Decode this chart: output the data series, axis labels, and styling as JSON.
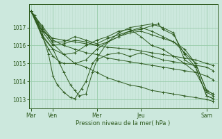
{
  "background_color": "#cce8dd",
  "line_color": "#2d5a1e",
  "grid_color_major": "#99ccaa",
  "grid_color_minor": "#bbddcc",
  "title": "Pression niveau de la mer( hPa )",
  "x_tick_positions": [
    0,
    1,
    3,
    5,
    8
  ],
  "x_tick_labels": [
    "Mar",
    "Ven",
    "Mer",
    "Jeu",
    "Sam"
  ],
  "ylim": [
    1012.5,
    1018.3
  ],
  "yticks": [
    1013,
    1014,
    1015,
    1016,
    1017
  ],
  "xlim": [
    -0.1,
    8.5
  ],
  "lines": [
    [
      0.0,
      1017.9,
      0.15,
      1017.7,
      0.5,
      1017.0,
      0.8,
      1016.5,
      1.0,
      1016.1,
      1.5,
      1015.5,
      2.0,
      1015.0,
      2.5,
      1014.8,
      3.0,
      1014.5,
      3.5,
      1014.2,
      4.0,
      1014.0,
      4.5,
      1013.8,
      5.0,
      1013.7,
      5.5,
      1013.5,
      6.0,
      1013.4,
      6.5,
      1013.3,
      7.0,
      1013.2,
      7.5,
      1013.1,
      8.0,
      1013.0,
      8.3,
      1012.9
    ],
    [
      0.0,
      1017.9,
      0.5,
      1017.1,
      1.0,
      1016.3,
      1.5,
      1016.0,
      2.0,
      1015.8,
      2.5,
      1015.6,
      3.0,
      1015.5,
      3.5,
      1015.3,
      4.0,
      1015.2,
      4.5,
      1015.1,
      5.0,
      1015.0,
      5.5,
      1014.9,
      6.0,
      1014.8,
      6.5,
      1014.7,
      7.0,
      1014.6,
      7.5,
      1014.5,
      8.0,
      1014.3,
      8.3,
      1014.1
    ],
    [
      0.0,
      1017.9,
      0.5,
      1016.8,
      1.0,
      1016.4,
      1.5,
      1016.3,
      2.0,
      1016.2,
      2.5,
      1016.1,
      3.0,
      1016.0,
      3.5,
      1015.9,
      4.0,
      1015.85,
      4.5,
      1015.8,
      5.0,
      1015.7,
      5.5,
      1015.6,
      6.0,
      1015.5,
      6.5,
      1015.4,
      7.0,
      1015.3,
      7.5,
      1015.2,
      8.0,
      1015.0,
      8.3,
      1014.9
    ],
    [
      0.0,
      1017.9,
      0.5,
      1016.5,
      1.0,
      1015.8,
      1.3,
      1015.0,
      1.5,
      1014.5,
      1.8,
      1013.8,
      2.0,
      1013.5,
      2.2,
      1013.2,
      2.5,
      1013.3,
      2.8,
      1014.5,
      3.0,
      1015.2,
      3.5,
      1015.5,
      4.0,
      1015.6,
      4.5,
      1015.4,
      5.0,
      1015.6,
      5.5,
      1015.4,
      6.0,
      1015.2,
      6.5,
      1015.1,
      7.0,
      1015.0,
      7.5,
      1014.9,
      8.0,
      1014.8,
      8.3,
      1014.6
    ],
    [
      0.0,
      1017.9,
      0.3,
      1017.3,
      0.5,
      1016.6,
      0.8,
      1015.5,
      1.0,
      1014.3,
      1.2,
      1013.8,
      1.5,
      1013.4,
      1.8,
      1013.1,
      2.0,
      1013.05,
      2.3,
      1013.6,
      2.5,
      1014.0,
      2.8,
      1015.0,
      3.0,
      1015.3,
      3.5,
      1016.2,
      4.0,
      1016.5,
      4.5,
      1016.8,
      5.0,
      1016.9,
      5.5,
      1017.1,
      5.8,
      1017.2,
      6.0,
      1016.9,
      6.5,
      1016.6,
      7.0,
      1015.5,
      7.5,
      1014.8,
      8.0,
      1013.2,
      8.3,
      1013.05
    ],
    [
      0.0,
      1017.9,
      0.3,
      1017.2,
      0.5,
      1016.5,
      0.8,
      1015.8,
      1.0,
      1015.4,
      1.3,
      1015.1,
      1.5,
      1015.0,
      2.0,
      1015.0,
      2.5,
      1015.2,
      3.0,
      1015.8,
      3.5,
      1016.2,
      4.0,
      1016.7,
      4.5,
      1017.0,
      5.0,
      1017.1,
      5.5,
      1017.2,
      6.0,
      1017.0,
      6.5,
      1016.7,
      7.0,
      1015.2,
      7.5,
      1014.8,
      8.0,
      1013.2,
      8.3,
      1013.05
    ],
    [
      0.0,
      1017.9,
      0.5,
      1016.6,
      1.0,
      1015.8,
      1.5,
      1015.5,
      2.0,
      1015.6,
      2.5,
      1016.0,
      3.0,
      1016.3,
      3.5,
      1016.5,
      4.0,
      1016.8,
      4.5,
      1016.9,
      5.0,
      1016.5,
      5.5,
      1016.0,
      6.0,
      1015.8,
      6.5,
      1015.4,
      7.0,
      1015.0,
      7.5,
      1014.5,
      8.0,
      1013.4,
      8.3,
      1013.2
    ],
    [
      0.0,
      1017.9,
      0.5,
      1016.8,
      1.0,
      1016.0,
      1.5,
      1016.1,
      2.0,
      1016.3,
      2.5,
      1016.2,
      3.0,
      1016.0,
      3.5,
      1016.2,
      4.0,
      1016.5,
      4.5,
      1016.7,
      5.0,
      1016.8,
      5.5,
      1016.6,
      6.0,
      1016.4,
      6.5,
      1016.2,
      7.0,
      1015.8,
      7.5,
      1015.0,
      8.0,
      1013.5,
      8.3,
      1013.3
    ],
    [
      0.0,
      1017.9,
      0.5,
      1016.9,
      1.0,
      1016.2,
      1.5,
      1016.2,
      2.0,
      1016.5,
      2.5,
      1016.3,
      3.0,
      1016.1,
      3.5,
      1016.4,
      4.0,
      1016.6,
      4.5,
      1016.8,
      5.0,
      1017.0,
      5.5,
      1016.8,
      6.0,
      1016.5,
      6.5,
      1016.2,
      7.0,
      1015.6,
      7.5,
      1015.0,
      8.0,
      1013.5,
      8.3,
      1013.3
    ]
  ]
}
